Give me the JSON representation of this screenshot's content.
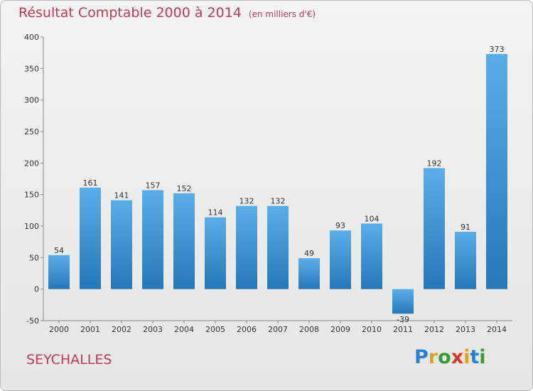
{
  "header": {
    "title": "Résultat Comptable 2000 à 2014",
    "subtitle": "(en milliers d'€)"
  },
  "footer": {
    "place": "SEYCHALLES",
    "logo": "Proxiti"
  },
  "colors": {
    "bar_light": "#5aaee8",
    "bar_dark": "#2478b8",
    "title": "#c0395a",
    "logo_letters": [
      "#2a7fd0",
      "#e2a21b",
      "#3a9a3a",
      "#d9372b",
      "#e2a21b",
      "#2a7fd0",
      "#3a9a3a"
    ]
  },
  "chart_data": {
    "type": "bar",
    "title": "Résultat Comptable 2000 à 2014",
    "subtitle": "(en milliers d'€)",
    "xlabel": "",
    "ylabel": "",
    "categories": [
      "2000",
      "2001",
      "2002",
      "2003",
      "2004",
      "2005",
      "2006",
      "2007",
      "2008",
      "2009",
      "2010",
      "2011",
      "2012",
      "2013",
      "2014"
    ],
    "values": [
      54,
      161,
      141,
      157,
      152,
      114,
      132,
      132,
      49,
      93,
      104,
      -39,
      192,
      91,
      373
    ],
    "ylim": [
      -50,
      400
    ],
    "yticks": [
      -50,
      0,
      50,
      100,
      150,
      200,
      250,
      300,
      350,
      400
    ],
    "grid": false,
    "legend": "none"
  }
}
